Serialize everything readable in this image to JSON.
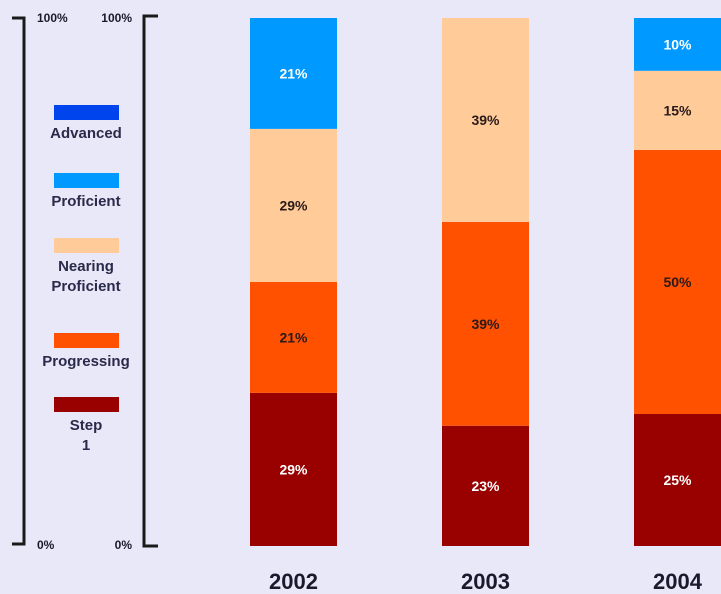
{
  "chart_data": {
    "type": "bar",
    "stacked": true,
    "categories": [
      "2002",
      "2003",
      "2004"
    ],
    "series": [
      {
        "name": "Step 1",
        "color": "#990000",
        "text_color": "#ffffff",
        "values": [
          29,
          23,
          25
        ],
        "labels": [
          "29%",
          "23%",
          "25%"
        ]
      },
      {
        "name": "Progressing",
        "color": "#ff5100",
        "text_color": "#2a1a1a",
        "values": [
          21,
          39,
          50
        ],
        "labels": [
          "21%",
          "39%",
          "50%"
        ]
      },
      {
        "name": "Nearing Proficient",
        "color": "#ffcc99",
        "text_color": "#2a1a1a",
        "values": [
          29,
          39,
          15
        ],
        "labels": [
          "29%",
          "39%",
          "15%"
        ]
      },
      {
        "name": "Proficient",
        "color": "#0099ff",
        "text_color": "#ffffff",
        "values": [
          21,
          0,
          10
        ],
        "labels": [
          "21%",
          "",
          "10%"
        ]
      },
      {
        "name": "Advanced",
        "color": "#0044ee",
        "text_color": "#ffffff",
        "values": [
          0,
          0,
          0
        ],
        "labels": [
          "",
          "",
          ""
        ]
      }
    ],
    "legend_order": [
      "Advanced",
      "Proficient",
      "Nearing Proficient",
      "Progressing",
      "Step 1"
    ],
    "axes": [
      {
        "top_label": "100%",
        "bottom_label": "0%"
      },
      {
        "top_label": "100%",
        "bottom_label": "0%"
      }
    ],
    "ylim": [
      0,
      100
    ],
    "grid": false,
    "legend_placement": "left"
  }
}
